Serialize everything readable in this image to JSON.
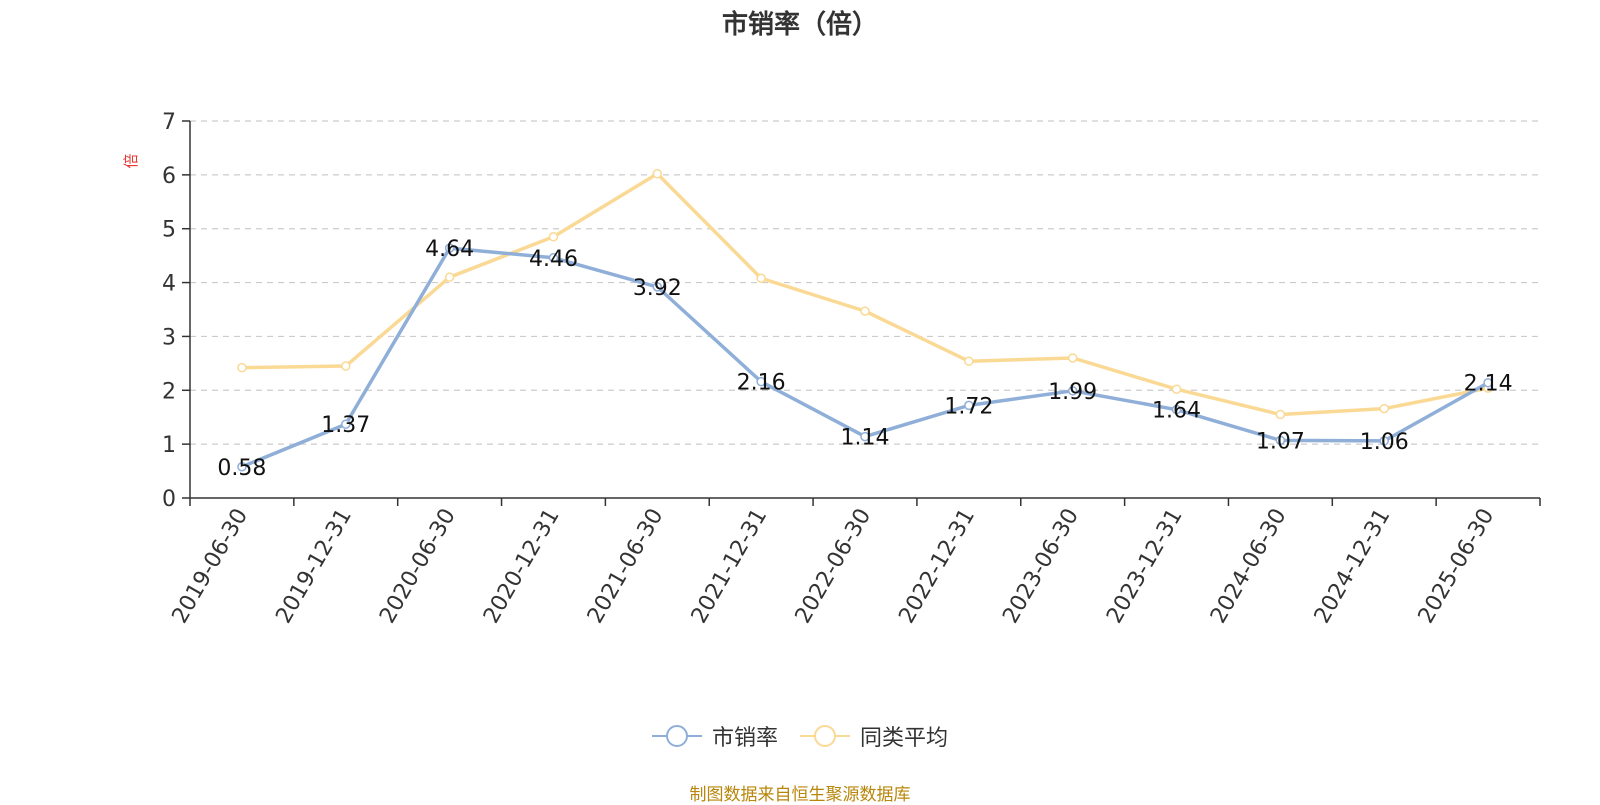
{
  "chart_data": {
    "type": "line",
    "title": "市销率（倍）",
    "ylabel": "倍",
    "xlabel": "",
    "ylim": [
      0,
      7
    ],
    "yticks": [
      "0",
      "1",
      "2",
      "3",
      "4",
      "5",
      "6",
      "7"
    ],
    "categories": [
      "2019-06-30",
      "2019-12-31",
      "2020-06-30",
      "2020-12-31",
      "2021-06-30",
      "2021-12-31",
      "2022-06-30",
      "2022-12-31",
      "2023-06-30",
      "2023-12-31",
      "2024-06-30",
      "2024-12-31",
      "2025-06-30"
    ],
    "grid": "horizontal dashed",
    "legend_position": "bottom",
    "series": [
      {
        "name": "市销率",
        "color": "#8fafd9",
        "values": [
          0.58,
          1.37,
          4.64,
          4.46,
          3.92,
          2.16,
          1.14,
          1.72,
          1.99,
          1.64,
          1.07,
          1.06,
          2.14
        ],
        "labels": [
          "0.58",
          "1.37",
          "4.64",
          "4.46",
          "3.92",
          "2.16",
          "1.14",
          "1.72",
          "1.99",
          "1.64",
          "1.07",
          "1.06",
          "2.14"
        ]
      },
      {
        "name": "同类平均",
        "color": "#fad995",
        "values": [
          2.42,
          2.45,
          4.1,
          4.85,
          6.02,
          4.08,
          3.47,
          2.54,
          2.6,
          2.02,
          1.55,
          1.66,
          2.04
        ]
      }
    ]
  },
  "source_note": "制图数据来自恒生聚源数据库"
}
